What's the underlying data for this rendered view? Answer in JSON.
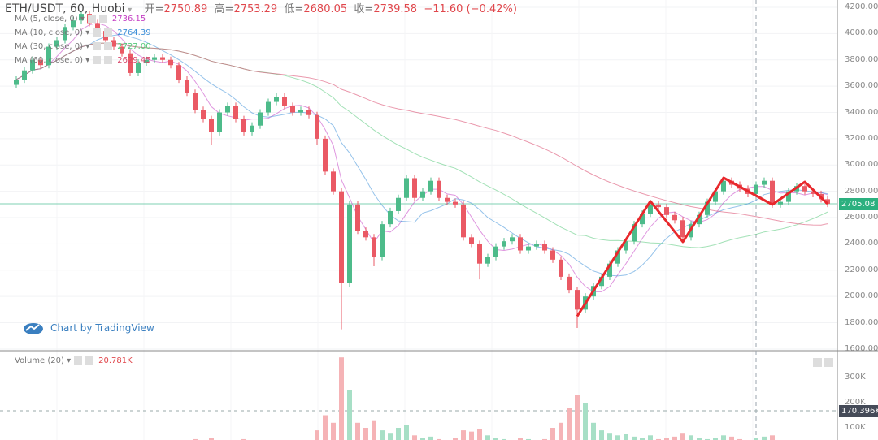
{
  "header": {
    "symbol_title": "ETH/USDT, 60, Huobi",
    "open_label": "开=",
    "open": "2750.89",
    "high_label": "高=",
    "high": "2753.29",
    "low_label": "低=",
    "low": "2680.05",
    "close_label": "收=",
    "close": "2739.58",
    "change": "−11.60 (−0.42%)"
  },
  "indicators": [
    {
      "label": "MA (5, close, 0)",
      "value": "2736.15",
      "color": "#c43fc4",
      "period": 5
    },
    {
      "label": "MA (10, close, 0)",
      "value": "2764.39",
      "color": "#3c8fd8",
      "period": 10
    },
    {
      "label": "MA (30, close, 0)",
      "value": "2727.00",
      "color": "#55c97a",
      "period": 30
    },
    {
      "label": "MA (60, close, 0)",
      "value": "2629.45",
      "color": "#d9466a",
      "period": 60
    }
  ],
  "volume_legend": {
    "label": "Volume (20)",
    "value": "20.781K"
  },
  "branding": "Chart by TradingView",
  "colors": {
    "up": "#4dbb8a",
    "down": "#ea5964",
    "up_vol": "#a7dfc6",
    "down_vol": "#f5b3b6",
    "drawing": "#e8282c",
    "last_price": "#2cb07f",
    "vol_marker": "#454b58"
  },
  "chart_data": {
    "type": "candlestick",
    "price_axis": {
      "ticks": [
        "4200.00",
        "4000.00",
        "3800.00",
        "3600.00",
        "3400.00",
        "3200.00",
        "3000.00",
        "2800.00",
        "2600.00",
        "2400.00",
        "2200.00",
        "2000.00",
        "1800.00",
        "1600.00"
      ],
      "range": [
        1600,
        4200
      ]
    },
    "volume_axis": {
      "ticks": [
        "300K",
        "200K",
        "100K"
      ]
    },
    "last_price": "2705.08",
    "volume_marker": "170.396K",
    "closes": [
      3650,
      3720,
      3800,
      3760,
      3900,
      3950,
      4050,
      4100,
      4150,
      4080,
      4020,
      3950,
      3900,
      3850,
      3700,
      3780,
      3800,
      3820,
      3800,
      3760,
      3650,
      3550,
      3420,
      3350,
      3250,
      3400,
      3450,
      3350,
      3250,
      3300,
      3400,
      3480,
      3520,
      3450,
      3400,
      3420,
      3380,
      3200,
      2950,
      2800,
      2100,
      2700,
      2500,
      2450,
      2300,
      2550,
      2650,
      2750,
      2900,
      2750,
      2800,
      2880,
      2750,
      2720,
      2700,
      2450,
      2400,
      2250,
      2300,
      2380,
      2420,
      2450,
      2350,
      2380,
      2400,
      2350,
      2280,
      2150,
      2050,
      1900,
      2000,
      2080,
      2150,
      2250,
      2350,
      2420,
      2550,
      2630,
      2700,
      2680,
      2620,
      2580,
      2450,
      2550,
      2620,
      2720,
      2800,
      2880,
      2850,
      2820,
      2780,
      2850,
      2880,
      2700,
      2720,
      2800,
      2840,
      2800,
      2780,
      2740,
      2705
    ],
    "wick_lows": {
      "40": 1750,
      "44": 2230,
      "57": 2130,
      "69": 1760,
      "37": 3150,
      "24": 3150
    },
    "volumes_k": [
      30,
      25,
      35,
      30,
      40,
      35,
      45,
      40,
      50,
      40,
      35,
      40,
      30,
      35,
      45,
      30,
      25,
      30,
      25,
      30,
      40,
      45,
      55,
      50,
      60,
      45,
      40,
      50,
      55,
      40,
      45,
      50,
      40,
      35,
      40,
      35,
      45,
      90,
      150,
      120,
      380,
      250,
      120,
      100,
      130,
      90,
      80,
      100,
      110,
      70,
      60,
      65,
      55,
      50,
      60,
      90,
      85,
      95,
      70,
      60,
      55,
      50,
      60,
      55,
      50,
      55,
      100,
      120,
      180,
      230,
      200,
      120,
      90,
      80,
      70,
      75,
      65,
      60,
      70,
      55,
      60,
      65,
      80,
      70,
      60,
      55,
      60,
      70,
      65,
      55,
      50,
      60,
      65,
      70,
      50,
      45,
      50,
      40,
      45,
      35,
      25
    ],
    "drawing_zigzag": [
      [
        69,
        1850
      ],
      [
        78,
        2725
      ],
      [
        82,
        2415
      ],
      [
        87,
        2903
      ],
      [
        93,
        2699
      ],
      [
        97,
        2872
      ],
      [
        100,
        2705
      ]
    ]
  }
}
